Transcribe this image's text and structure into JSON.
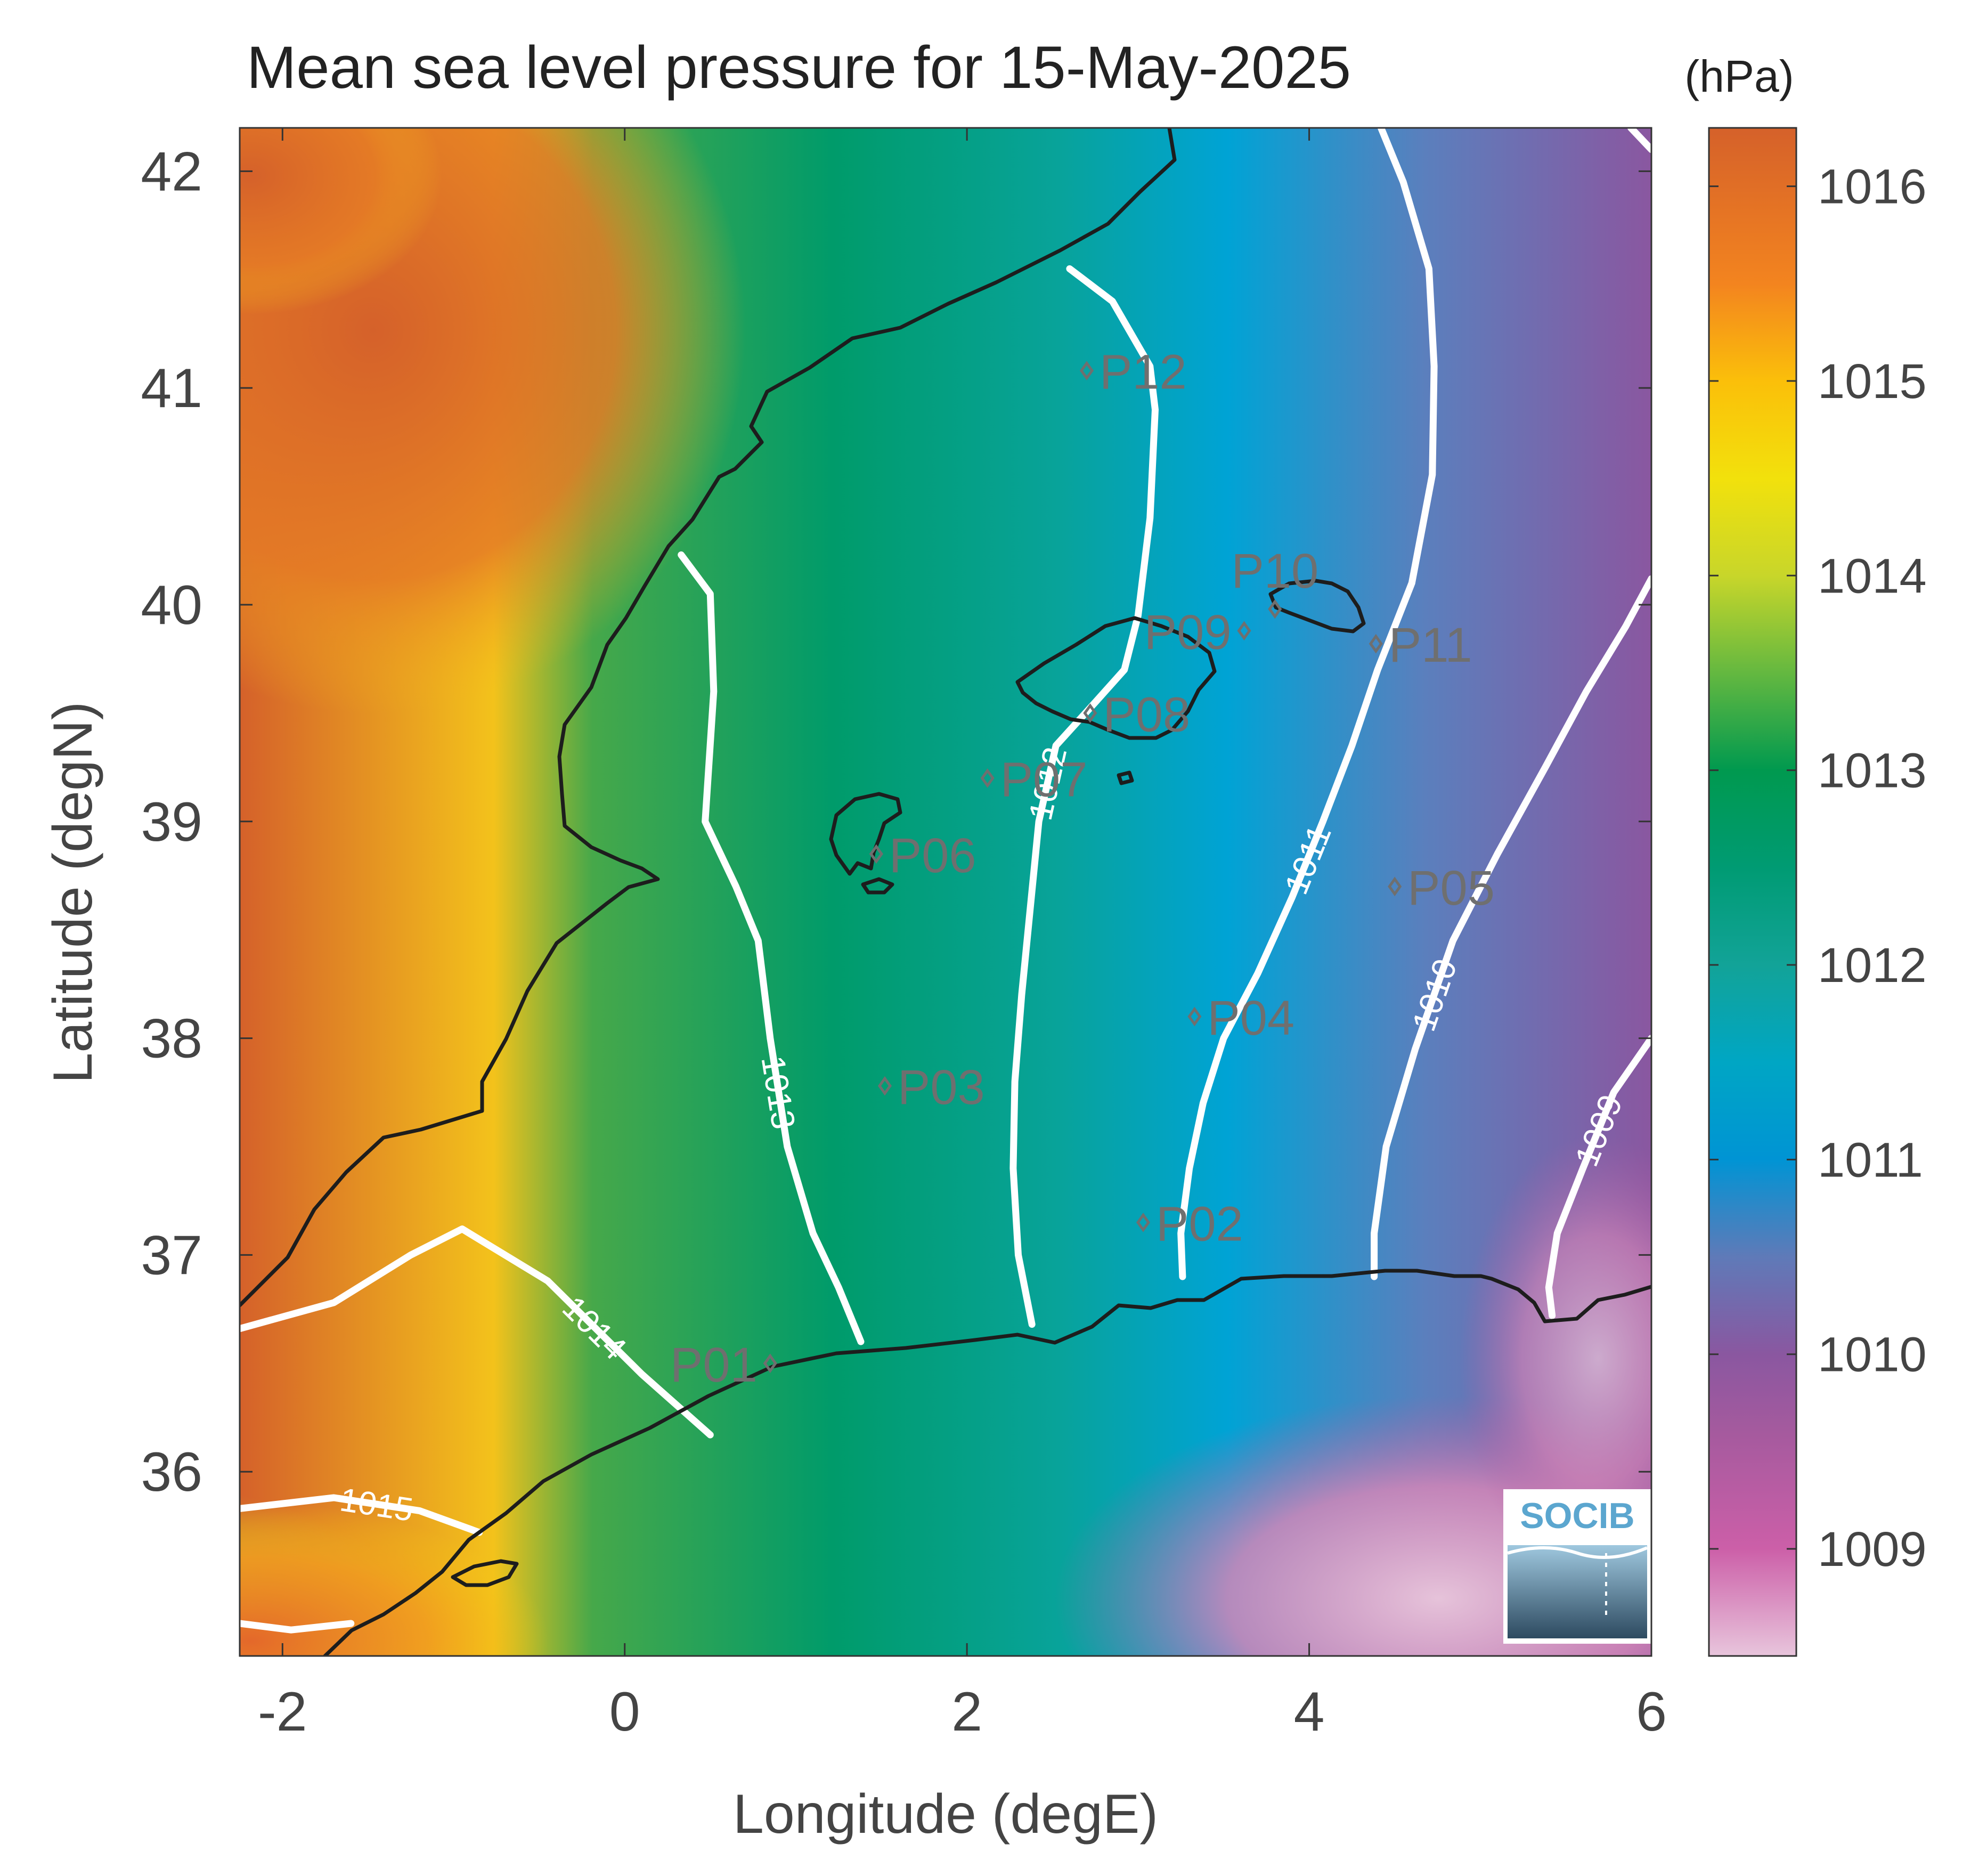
{
  "title": "Mean sea level pressure for 15-May-2025",
  "unit_label": "(hPa)",
  "x_axis": {
    "label": "Longitude (degE)",
    "range": [
      -2.25,
      6
    ],
    "ticks": [
      -2,
      0,
      2,
      4,
      6
    ],
    "tick_labels": [
      "-2",
      "0",
      "2",
      "4",
      "6"
    ]
  },
  "y_axis": {
    "label": "Latitude (degN)",
    "range": [
      35.15,
      42.2
    ],
    "ticks": [
      36,
      37,
      38,
      39,
      40,
      41,
      42
    ],
    "tick_labels": [
      "36",
      "37",
      "38",
      "39",
      "40",
      "41",
      "42"
    ]
  },
  "colorbar": {
    "range": [
      1008.45,
      1016.3
    ],
    "ticks": [
      1009,
      1010,
      1011,
      1012,
      1013,
      1014,
      1015,
      1016
    ],
    "tick_labels": [
      "1009",
      "1010",
      "1011",
      "1012",
      "1013",
      "1014",
      "1015",
      "1016"
    ],
    "colors": [
      {
        "value": 1008.45,
        "color": "#e8c5dc"
      },
      {
        "value": 1009.0,
        "color": "#cc5fa8"
      },
      {
        "value": 1009.6,
        "color": "#a55a9e"
      },
      {
        "value": 1010.0,
        "color": "#8a57a0"
      },
      {
        "value": 1010.5,
        "color": "#5f7ab8"
      },
      {
        "value": 1011.0,
        "color": "#0094d4"
      },
      {
        "value": 1011.5,
        "color": "#00a6c4"
      },
      {
        "value": 1012.0,
        "color": "#12a398"
      },
      {
        "value": 1012.5,
        "color": "#009b73"
      },
      {
        "value": 1013.0,
        "color": "#00994f"
      },
      {
        "value": 1013.5,
        "color": "#64b840"
      },
      {
        "value": 1014.0,
        "color": "#c8d62a"
      },
      {
        "value": 1014.5,
        "color": "#f2e10c"
      },
      {
        "value": 1015.0,
        "color": "#fbbf0a"
      },
      {
        "value": 1015.5,
        "color": "#f3841f"
      },
      {
        "value": 1016.3,
        "color": "#d5612a"
      }
    ]
  },
  "stations": [
    {
      "name": "P01",
      "lon": 0.85,
      "lat": 36.5,
      "label_side": "left"
    },
    {
      "name": "P02",
      "lon": 3.03,
      "lat": 37.15,
      "label_side": "right"
    },
    {
      "name": "P03",
      "lon": 1.52,
      "lat": 37.78,
      "label_side": "right"
    },
    {
      "name": "P04",
      "lon": 3.33,
      "lat": 38.1,
      "label_side": "right"
    },
    {
      "name": "P05",
      "lon": 4.5,
      "lat": 38.7,
      "label_side": "right"
    },
    {
      "name": "P06",
      "lon": 1.47,
      "lat": 38.85,
      "label_side": "right"
    },
    {
      "name": "P07",
      "lon": 2.12,
      "lat": 39.2,
      "label_side": "right"
    },
    {
      "name": "P08",
      "lon": 2.72,
      "lat": 39.5,
      "label_side": "right"
    },
    {
      "name": "P09",
      "lon": 3.62,
      "lat": 39.88,
      "label_side": "left"
    },
    {
      "name": "P10",
      "lon": 3.8,
      "lat": 39.98,
      "label_side": "above"
    },
    {
      "name": "P11",
      "lon": 4.39,
      "lat": 39.82,
      "label_side": "right"
    },
    {
      "name": "P12",
      "lon": 2.7,
      "lat": 41.08,
      "label_side": "right"
    }
  ],
  "contours": [
    {
      "level": 1015,
      "label": "1015",
      "points": [
        [
          -2.25,
          35.83
        ],
        [
          -1.7,
          35.88
        ],
        [
          -1.2,
          35.82
        ],
        [
          -0.85,
          35.72
        ]
      ]
    },
    {
      "level": 1015,
      "label": "",
      "points": [
        [
          -2.25,
          35.3
        ],
        [
          -1.95,
          35.27
        ],
        [
          -1.6,
          35.3
        ]
      ]
    },
    {
      "level": 1014,
      "label": "1014",
      "points": [
        [
          -2.25,
          36.66
        ],
        [
          -1.7,
          36.78
        ],
        [
          -1.25,
          37.0
        ],
        [
          -0.95,
          37.12
        ],
        [
          -0.45,
          36.88
        ],
        [
          0.1,
          36.45
        ],
        [
          0.5,
          36.17
        ]
      ]
    },
    {
      "level": 1013,
      "label": "1013",
      "points": [
        [
          0.33,
          40.23
        ],
        [
          0.5,
          40.05
        ],
        [
          0.52,
          39.6
        ],
        [
          0.47,
          39.0
        ],
        [
          0.65,
          38.7
        ],
        [
          0.78,
          38.45
        ],
        [
          0.85,
          38.0
        ],
        [
          0.95,
          37.5
        ],
        [
          1.1,
          37.1
        ],
        [
          1.25,
          36.85
        ],
        [
          1.38,
          36.6
        ]
      ]
    },
    {
      "level": 1012,
      "label": "1012",
      "points": [
        [
          2.6,
          41.55
        ],
        [
          2.85,
          41.4
        ],
        [
          3.07,
          41.1
        ],
        [
          3.1,
          40.9
        ],
        [
          3.07,
          40.4
        ],
        [
          3.0,
          39.95
        ],
        [
          2.92,
          39.7
        ],
        [
          2.75,
          39.55
        ],
        [
          2.52,
          39.35
        ],
        [
          2.42,
          39.0
        ],
        [
          2.37,
          38.6
        ],
        [
          2.32,
          38.2
        ],
        [
          2.28,
          37.8
        ],
        [
          2.27,
          37.4
        ],
        [
          2.3,
          37.0
        ],
        [
          2.38,
          36.68
        ]
      ]
    },
    {
      "level": 1011,
      "label": "1011",
      "points": [
        [
          4.42,
          42.2
        ],
        [
          4.55,
          41.95
        ],
        [
          4.7,
          41.55
        ],
        [
          4.73,
          41.1
        ],
        [
          4.72,
          40.6
        ],
        [
          4.6,
          40.1
        ],
        [
          4.4,
          39.7
        ],
        [
          4.25,
          39.35
        ],
        [
          4.08,
          39.0
        ],
        [
          3.9,
          38.65
        ],
        [
          3.7,
          38.3
        ],
        [
          3.5,
          38.0
        ],
        [
          3.38,
          37.7
        ],
        [
          3.3,
          37.4
        ],
        [
          3.25,
          37.1
        ],
        [
          3.26,
          36.9
        ]
      ]
    },
    {
      "level": 1010,
      "label": "1010",
      "points": [
        [
          6.0,
          40.12
        ],
        [
          5.85,
          39.9
        ],
        [
          5.62,
          39.6
        ],
        [
          5.38,
          39.25
        ],
        [
          5.1,
          38.85
        ],
        [
          4.84,
          38.45
        ],
        [
          4.62,
          37.95
        ],
        [
          4.45,
          37.5
        ],
        [
          4.38,
          37.1
        ],
        [
          4.38,
          36.9
        ]
      ]
    },
    {
      "level": 1010,
      "label": "",
      "points": [
        [
          5.88,
          42.2
        ],
        [
          6.0,
          42.1
        ]
      ]
    },
    {
      "level": 1009,
      "label": "1009",
      "points": [
        [
          6.0,
          38.0
        ],
        [
          5.78,
          37.75
        ],
        [
          5.6,
          37.4
        ],
        [
          5.45,
          37.1
        ],
        [
          5.4,
          36.85
        ],
        [
          5.42,
          36.72
        ]
      ]
    }
  ],
  "logo": {
    "text": "SOCIB"
  }
}
